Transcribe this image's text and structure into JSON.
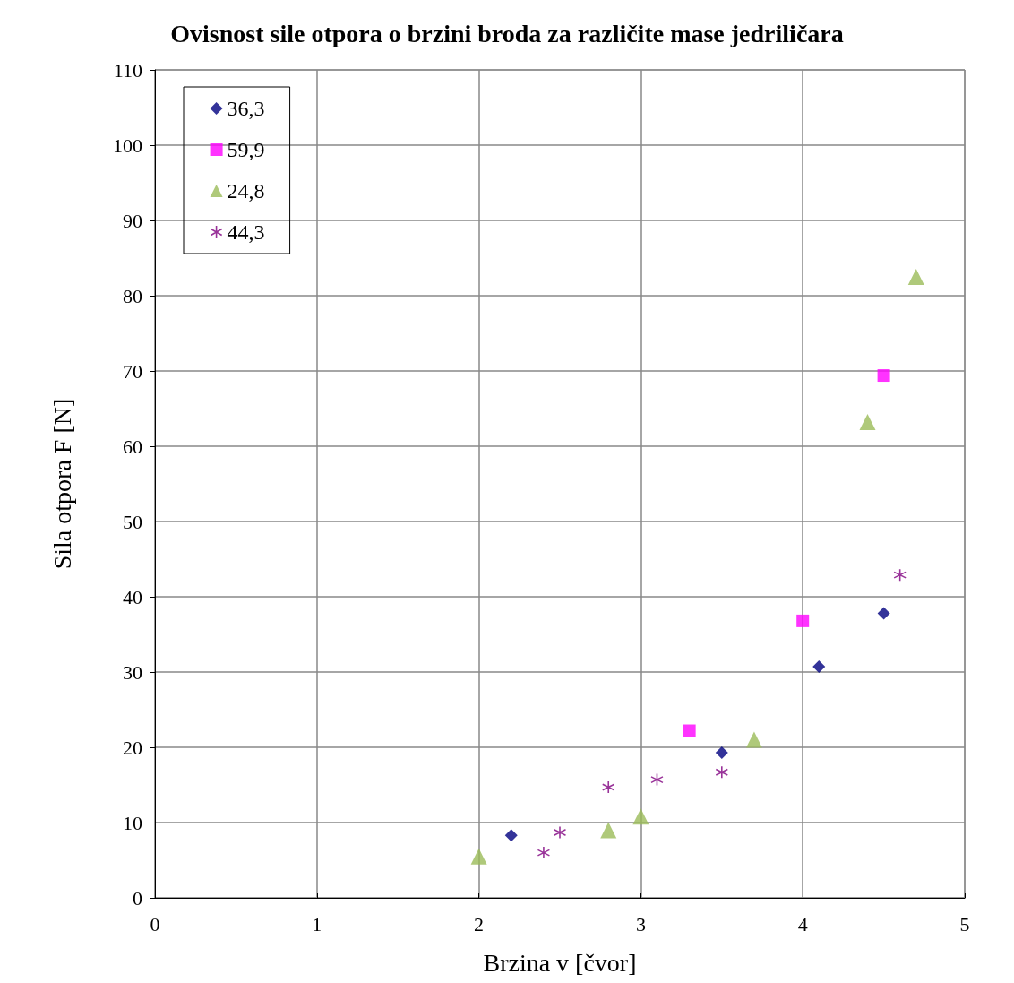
{
  "chart_data": {
    "type": "scatter",
    "title": "Ovisnost sile otpora o brzini broda za različite mase jedriličara",
    "xlabel": "Brzina v [čvor]",
    "ylabel": "Sila otpora F [N]",
    "xlim": [
      0,
      5
    ],
    "xticks": [
      0,
      1,
      2,
      3,
      4,
      5
    ],
    "ylim": [
      0,
      110
    ],
    "yticks": [
      0,
      10,
      20,
      30,
      40,
      50,
      60,
      70,
      80,
      90,
      100,
      110
    ],
    "grid": true,
    "legend": "top left",
    "series": [
      {
        "name": "36,3",
        "color": "#000080",
        "marker": "diamond",
        "x": [
          2.2,
          3.5,
          4.1,
          4.5
        ],
        "values": [
          8.3,
          19.3,
          30.7,
          37.8
        ]
      },
      {
        "name": "59,9",
        "color": "#ff00ff",
        "marker": "square",
        "x": [
          3.3,
          4.0,
          4.5
        ],
        "values": [
          22.2,
          36.8,
          69.4
        ]
      },
      {
        "name": "24,8",
        "color": "#9bbb59",
        "marker": "triangle",
        "x": [
          2.0,
          2.8,
          3.0,
          3.7,
          4.4,
          4.7
        ],
        "values": [
          5.5,
          9.0,
          10.8,
          21.0,
          63.2,
          82.5
        ]
      },
      {
        "name": "44,3",
        "color": "#800080",
        "marker": "cross",
        "x": [
          2.4,
          2.5,
          2.8,
          3.1,
          3.5,
          4.6
        ],
        "values": [
          6.0,
          8.7,
          14.7,
          15.7,
          16.7,
          42.9
        ]
      }
    ]
  }
}
